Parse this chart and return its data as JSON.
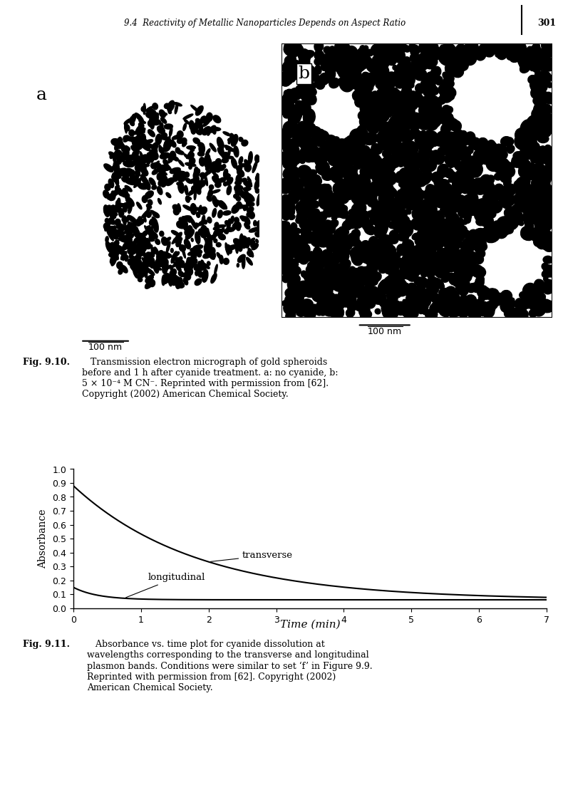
{
  "header_text": "9.4  Reactivity of Metallic Nanoparticles Depends on Aspect Ratio",
  "page_number": "301",
  "fig_label_a": "a",
  "fig_label_b": "b",
  "scalebar_text": "100 nm",
  "fig910_caption_bold": "Fig. 9.10.",
  "fig910_caption_rest": "   Transmission electron micrograph of gold spheroids\nbefore and 1 h after cyanide treatment. a: no cyanide, b:\n5 × 10⁻⁴ M CN⁻. Reprinted with permission from [62].\nCopyright (2002) American Chemical Society.",
  "fig911_caption_bold": "Fig. 9.11.",
  "fig911_caption_rest": "   Absorbance vs. time plot for cyanide dissolution at\nwavelengths corresponding to the transverse and longitudinal\nplasmon bands. Conditions were similar to set ‘f’ in Figure 9.9.\nReprinted with permission from [62]. Copyright (2002)\nAmerican Chemical Society.",
  "xlabel": "Time (min)",
  "ylabel": "Absorbance",
  "xlim": [
    0,
    7
  ],
  "ylim": [
    0,
    1
  ],
  "xticks": [
    0,
    1,
    2,
    3,
    4,
    5,
    6,
    7
  ],
  "yticks": [
    0,
    0.1,
    0.2,
    0.3,
    0.4,
    0.5,
    0.6,
    0.7,
    0.8,
    0.9,
    1
  ],
  "transverse_label": "transverse",
  "longitudinal_label": "longitudinal",
  "background_color": "#ffffff",
  "line_color": "#000000"
}
